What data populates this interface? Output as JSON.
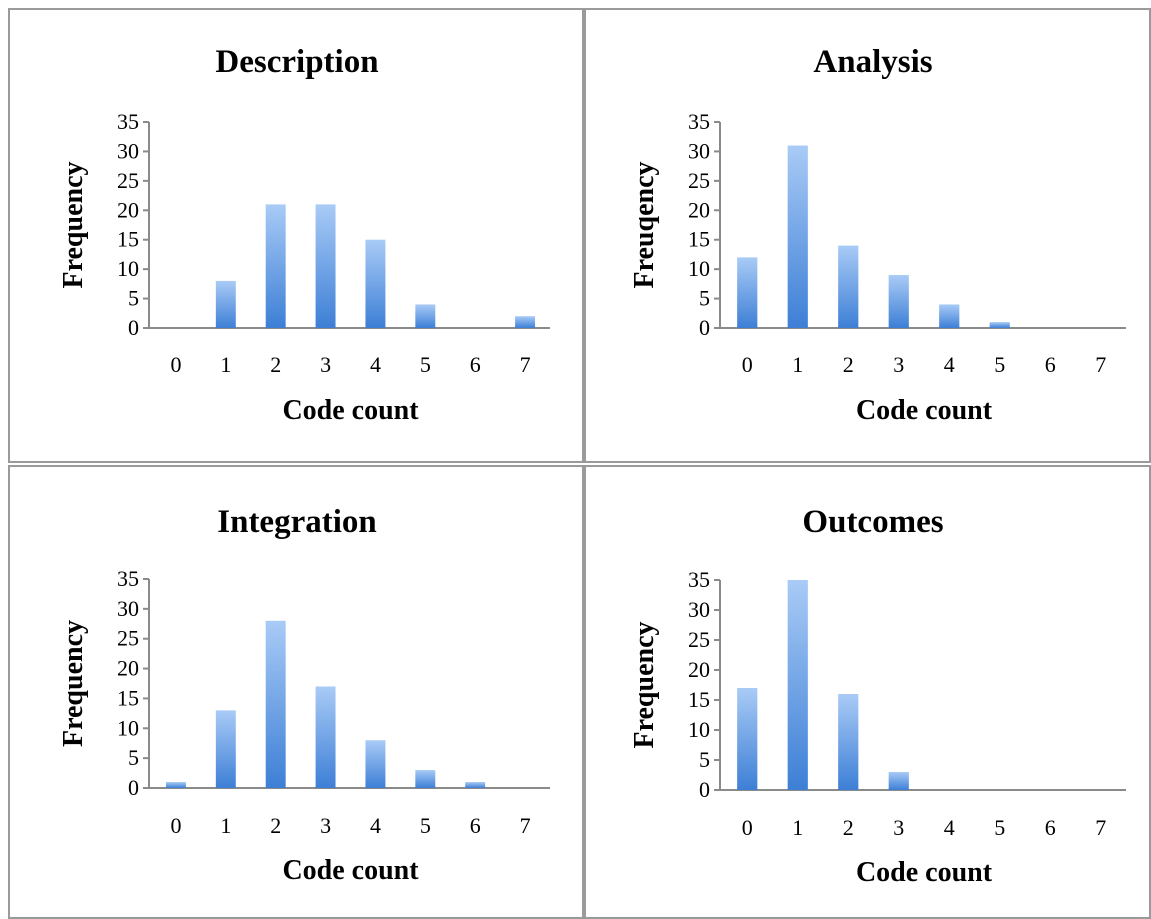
{
  "chart_data": [
    {
      "type": "bar",
      "title": "Description",
      "xlabel": "Code count",
      "ylabel": "Frequency",
      "categories": [
        "0",
        "1",
        "2",
        "3",
        "4",
        "5",
        "6",
        "7"
      ],
      "values": [
        0,
        8,
        21,
        21,
        15,
        4,
        0,
        2
      ],
      "ylim": [
        0,
        35
      ],
      "yticks": [
        "0",
        "5",
        "10",
        "15",
        "20",
        "25",
        "30",
        "35"
      ],
      "grid": false,
      "legend": "none"
    },
    {
      "type": "bar",
      "title": "Analysis",
      "xlabel": "Code count",
      "ylabel": "Freuqency",
      "categories": [
        "0",
        "1",
        "2",
        "3",
        "4",
        "5",
        "6",
        "7"
      ],
      "values": [
        12,
        31,
        14,
        9,
        4,
        1,
        0,
        0
      ],
      "ylim": [
        0,
        35
      ],
      "yticks": [
        "0",
        "5",
        "10",
        "15",
        "20",
        "25",
        "30",
        "35"
      ],
      "grid": false,
      "legend": "none"
    },
    {
      "type": "bar",
      "title": "Integration",
      "xlabel": "Code count",
      "ylabel": "Frequency",
      "categories": [
        "0",
        "1",
        "2",
        "3",
        "4",
        "5",
        "6",
        "7"
      ],
      "values": [
        1,
        13,
        28,
        17,
        8,
        3,
        1,
        0
      ],
      "ylim": [
        0,
        35
      ],
      "yticks": [
        "0",
        "5",
        "10",
        "15",
        "20",
        "25",
        "30",
        "35"
      ],
      "grid": false,
      "legend": "none"
    },
    {
      "type": "bar",
      "title": "Outcomes",
      "xlabel": "Code count",
      "ylabel": "Frequency",
      "categories": [
        "0",
        "1",
        "2",
        "3",
        "4",
        "5",
        "6",
        "7"
      ],
      "values": [
        17,
        35,
        16,
        3,
        0,
        0,
        0,
        0
      ],
      "ylim": [
        0,
        35
      ],
      "yticks": [
        "0",
        "5",
        "10",
        "15",
        "20",
        "25",
        "30",
        "35"
      ],
      "grid": false,
      "legend": "none"
    }
  ],
  "colors": {
    "bar_top": "#a9cbf6",
    "bar_bottom": "#3d7fd6",
    "axis": "#8a8a8a"
  }
}
